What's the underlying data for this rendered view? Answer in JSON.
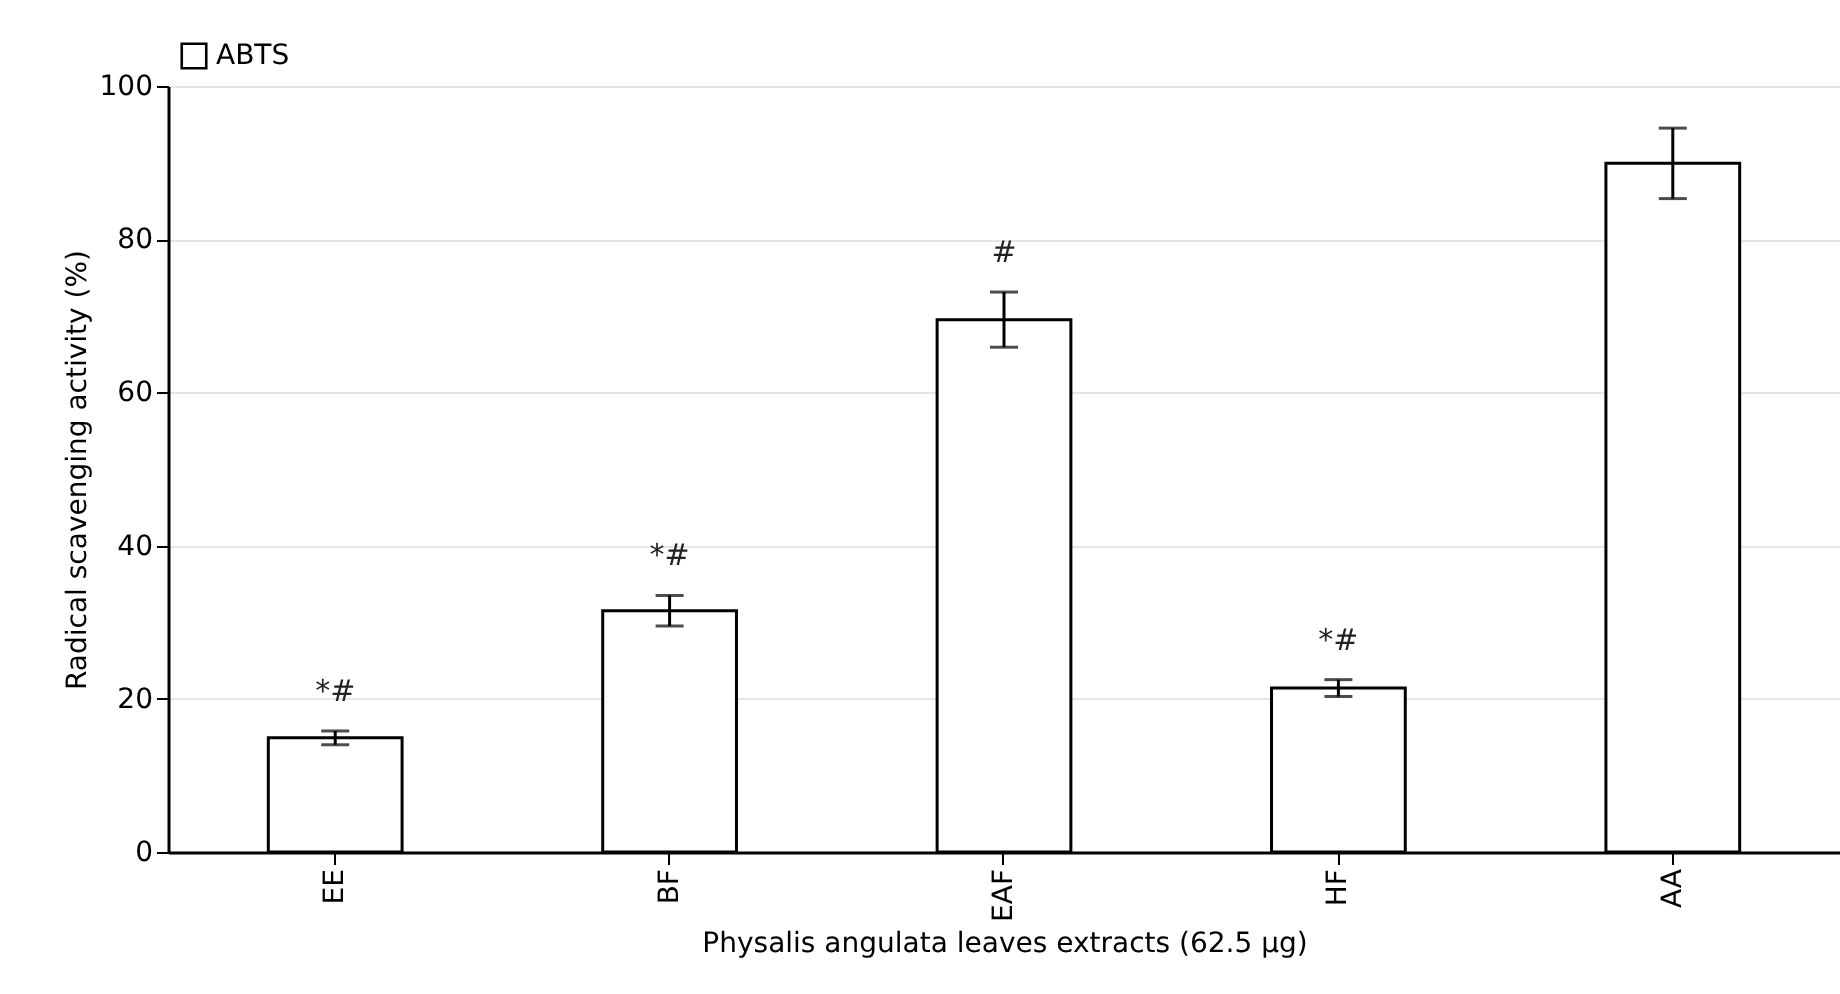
{
  "chart_data": {
    "type": "bar",
    "xlabel": "Physalis angulata leaves extracts (62.5 µg)",
    "ylabel": "Radical scavenging activity (%)",
    "categories": [
      "EE",
      "BF",
      "EAF",
      "HF",
      "AA"
    ],
    "series": [
      {
        "name": "ABTS",
        "color": "#ffffff",
        "values": [
          14.9,
          31.5,
          69.5,
          21.4,
          89.9
        ],
        "errors": [
          0.9,
          2,
          3.6,
          1.1,
          4.6
        ]
      }
    ],
    "ylim": [
      0,
      100
    ],
    "yticks": [
      0,
      20,
      40,
      60,
      80,
      100
    ],
    "grid": "y",
    "legend": "top left",
    "annotations": [
      {
        "text": "*#",
        "x": "EE",
        "y": 15.8
      },
      {
        "text": "*#",
        "x": "BF",
        "y": 33.5
      },
      {
        "text": "#",
        "x": "EAF",
        "y": 73.1
      },
      {
        "text": "*#",
        "x": "HF",
        "y": 22.5
      }
    ]
  }
}
